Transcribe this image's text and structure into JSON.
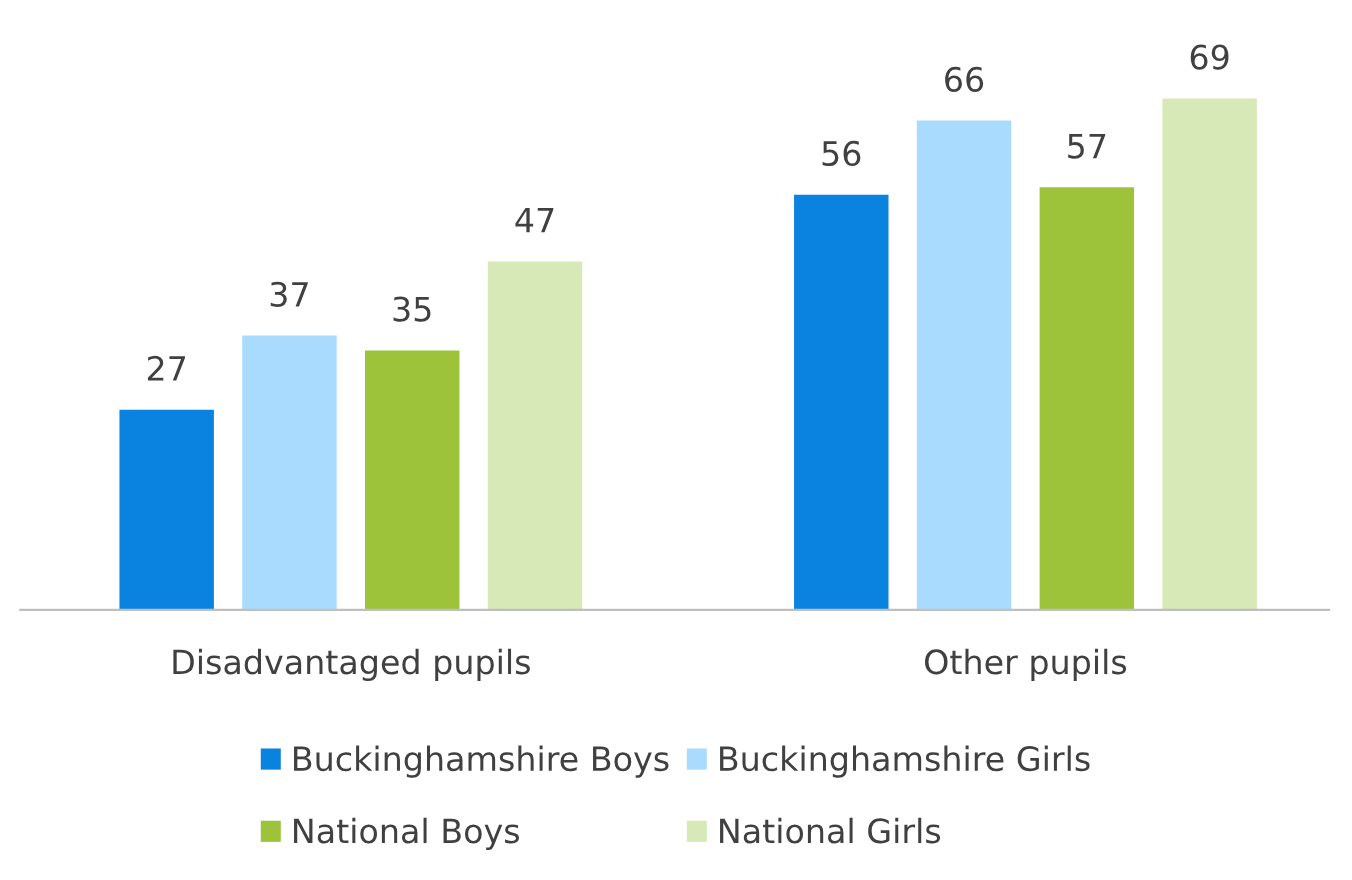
{
  "chart_data": {
    "type": "bar",
    "categories": [
      "Disadvantaged pupils",
      "Other pupils"
    ],
    "series": [
      {
        "name": "Buckinghamshire Boys",
        "color": "#0a82e0",
        "values": [
          27,
          56
        ]
      },
      {
        "name": "Buckinghamshire Girls",
        "color": "#a9dbff",
        "values": [
          37,
          66
        ]
      },
      {
        "name": "National Boys",
        "color": "#9dc33b",
        "values": [
          35,
          57
        ]
      },
      {
        "name": "National Girls",
        "color": "#d8e9b8",
        "values": [
          47,
          69
        ]
      }
    ],
    "data_labels": true,
    "legend": "bottom"
  }
}
